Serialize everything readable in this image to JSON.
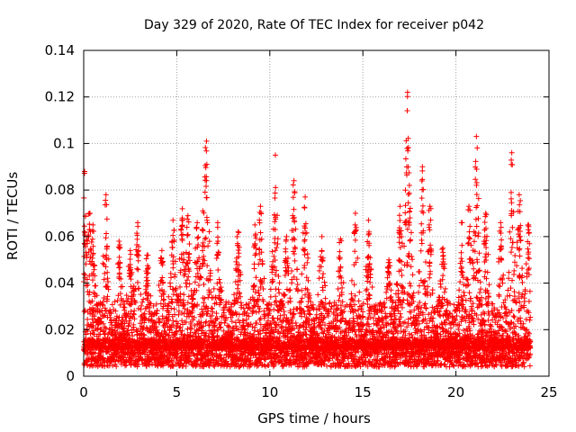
{
  "chart_data": {
    "type": "scatter",
    "title": "Day 329 of 2020, Rate Of TEC Index for receiver p042",
    "xlabel": "GPS time / hours",
    "ylabel": "ROTI / TECUs",
    "xlim": [
      0,
      25
    ],
    "ylim": [
      0,
      0.14
    ],
    "xticks": [
      0,
      5,
      10,
      15,
      20,
      25
    ],
    "yticks": [
      0,
      0.02,
      0.04,
      0.06,
      0.08,
      0.1,
      0.12,
      0.14
    ],
    "xtick_labels": [
      "0",
      "5",
      "10",
      "15",
      "20",
      "25"
    ],
    "ytick_labels": [
      "0",
      "0.02",
      "0.04",
      "0.06",
      "0.08",
      "0.1",
      "0.12",
      "0.14"
    ],
    "grid": true,
    "marker": "+",
    "color": "#ff0000",
    "data_range_x": [
      0,
      24
    ],
    "baseline_level": 0.012,
    "peaks": [
      {
        "x": 0.05,
        "y": 0.088
      },
      {
        "x": 0.3,
        "y": 0.07
      },
      {
        "x": 0.5,
        "y": 0.065
      },
      {
        "x": 1.2,
        "y": 0.078
      },
      {
        "x": 1.9,
        "y": 0.058
      },
      {
        "x": 2.5,
        "y": 0.054
      },
      {
        "x": 2.9,
        "y": 0.066
      },
      {
        "x": 3.4,
        "y": 0.052
      },
      {
        "x": 4.2,
        "y": 0.054
      },
      {
        "x": 4.8,
        "y": 0.067
      },
      {
        "x": 5.3,
        "y": 0.072
      },
      {
        "x": 5.6,
        "y": 0.069
      },
      {
        "x": 6.1,
        "y": 0.066
      },
      {
        "x": 6.4,
        "y": 0.071
      },
      {
        "x": 6.6,
        "y": 0.101
      },
      {
        "x": 7.2,
        "y": 0.066
      },
      {
        "x": 8.3,
        "y": 0.062
      },
      {
        "x": 9.2,
        "y": 0.065
      },
      {
        "x": 9.5,
        "y": 0.073
      },
      {
        "x": 10.3,
        "y": 0.095
      },
      {
        "x": 10.9,
        "y": 0.06
      },
      {
        "x": 11.3,
        "y": 0.084
      },
      {
        "x": 11.9,
        "y": 0.077
      },
      {
        "x": 12.8,
        "y": 0.06
      },
      {
        "x": 13.8,
        "y": 0.059
      },
      {
        "x": 14.6,
        "y": 0.07
      },
      {
        "x": 15.3,
        "y": 0.067
      },
      {
        "x": 16.4,
        "y": 0.05
      },
      {
        "x": 17.0,
        "y": 0.073
      },
      {
        "x": 17.4,
        "y": 0.122
      },
      {
        "x": 17.5,
        "y": 0.082
      },
      {
        "x": 18.2,
        "y": 0.09
      },
      {
        "x": 18.6,
        "y": 0.073
      },
      {
        "x": 19.3,
        "y": 0.055
      },
      {
        "x": 20.3,
        "y": 0.066
      },
      {
        "x": 20.7,
        "y": 0.073
      },
      {
        "x": 21.1,
        "y": 0.103
      },
      {
        "x": 21.6,
        "y": 0.07
      },
      {
        "x": 22.4,
        "y": 0.066
      },
      {
        "x": 23.0,
        "y": 0.096
      },
      {
        "x": 23.4,
        "y": 0.078
      },
      {
        "x": 23.9,
        "y": 0.065
      }
    ]
  }
}
